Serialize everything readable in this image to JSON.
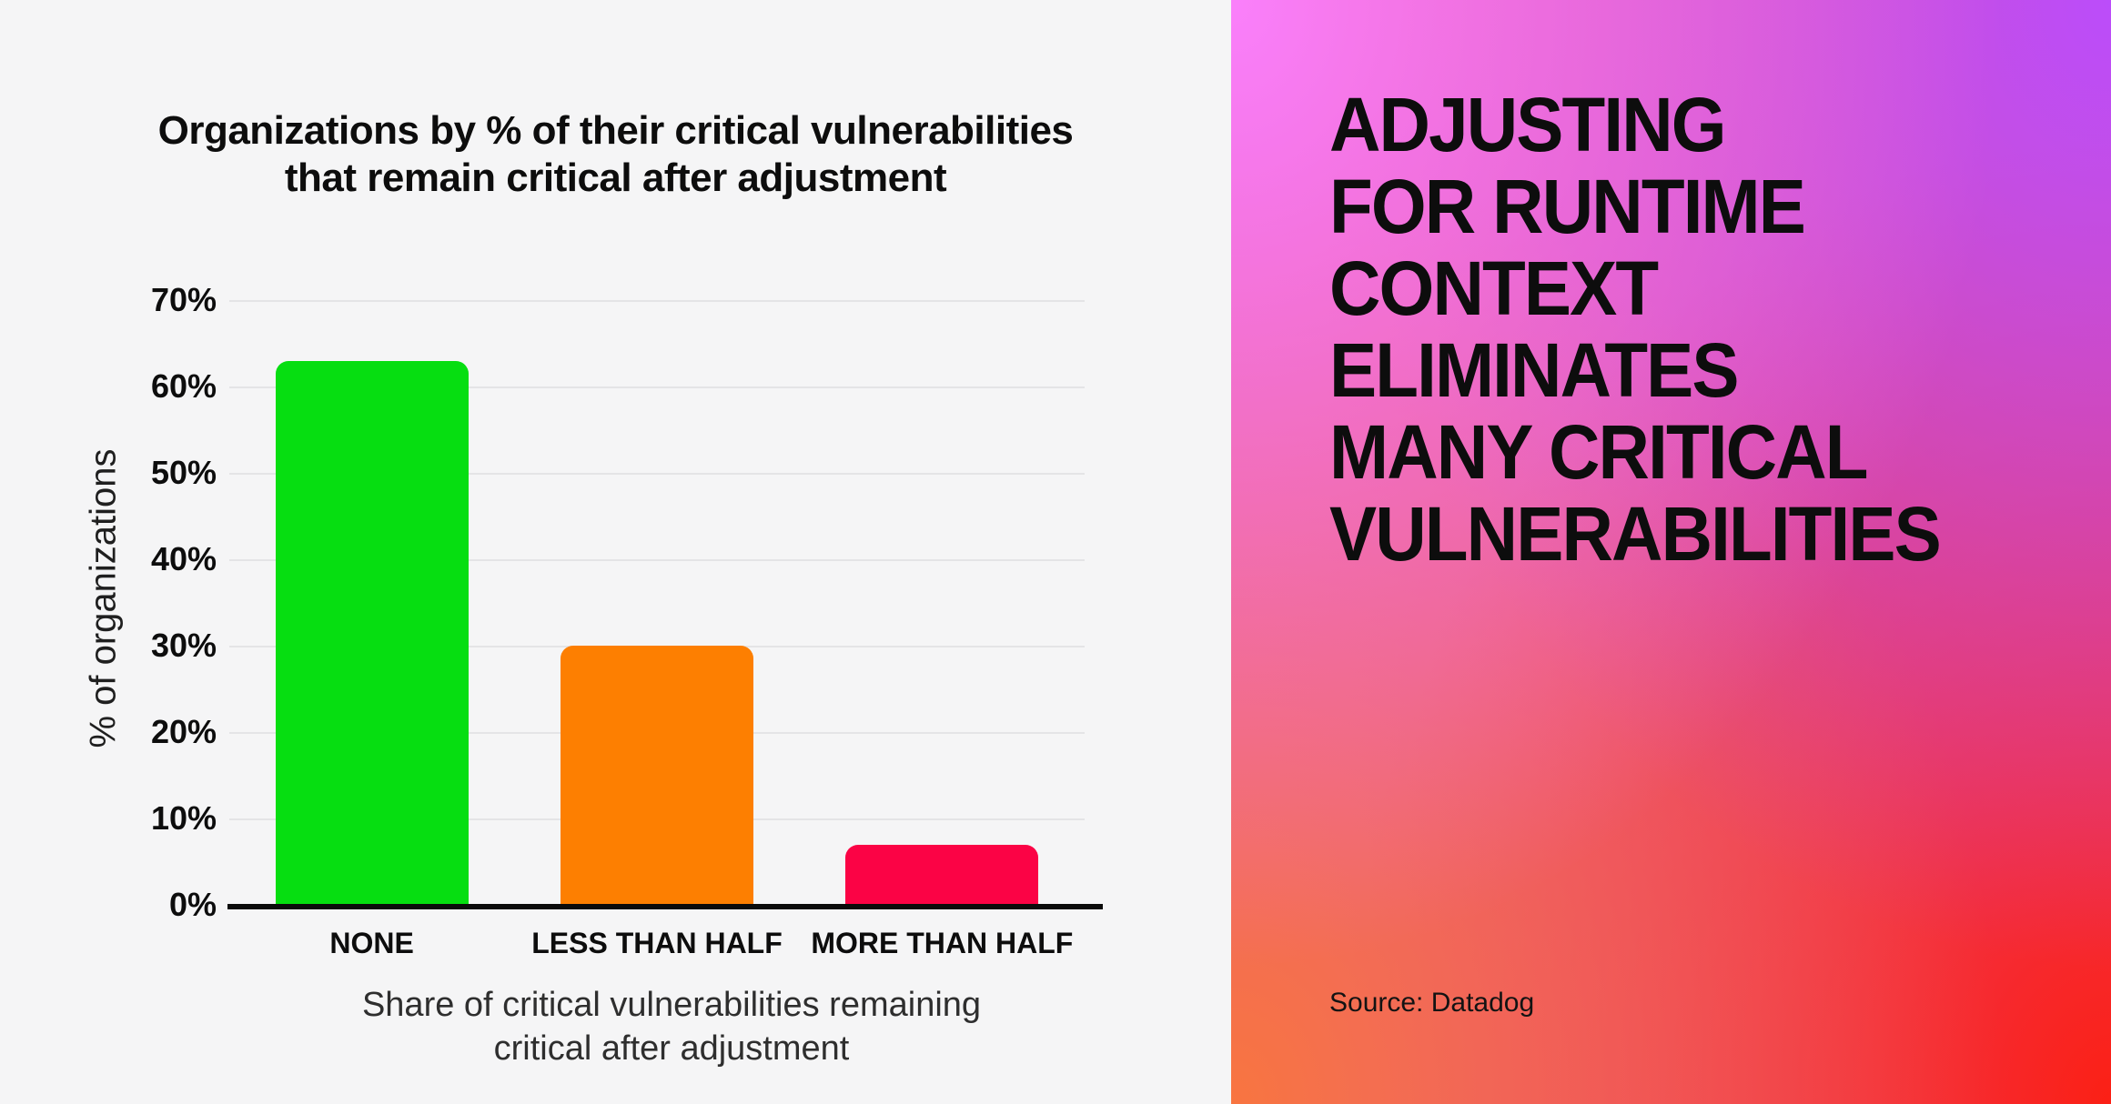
{
  "chart": {
    "title_line1": "Organizations by % of their critical vulnerabilities",
    "title_line2": "that remain critical after adjustment",
    "xlabel_line1": "Share of critical vulnerabilities remaining",
    "xlabel_line2": "critical after adjustment"
  },
  "chart_data": {
    "type": "bar",
    "title": "Organizations by % of their critical vulnerabilities that remain critical after adjustment",
    "categories": [
      "NONE",
      "LESS THAN HALF",
      "MORE THAN HALF"
    ],
    "values": [
      63,
      30,
      7
    ],
    "bar_colors": [
      "#06DE11",
      "#FD7F01",
      "#FB0345"
    ],
    "xlabel": "Share of critical vulnerabilities remaining critical after adjustment",
    "ylabel": "% of organizations",
    "ylim": [
      0,
      70
    ],
    "yticks": [
      0,
      10,
      20,
      30,
      40,
      50,
      60,
      70
    ],
    "ytick_labels": [
      "0%",
      "10%",
      "20%",
      "30%",
      "40%",
      "50%",
      "60%",
      "70%"
    ],
    "grid": true,
    "legend": "none"
  },
  "right_panel": {
    "headline_lines": [
      "ADJUSTING",
      "FOR RUNTIME",
      "CONTEXT",
      "ELIMINATES",
      "MANY CRITICAL",
      "VULNERABILITIES"
    ],
    "source": "Source: Datadog",
    "colors": {
      "top_left": "#FA80FB",
      "top_right": "#BB4DFA",
      "bottom_left": "#F87540",
      "bottom_right": "#FB2015",
      "base": "#E1509B",
      "headline_text": "#0D0D0D"
    }
  },
  "colors": {
    "left_bg": "#F5F5F6",
    "gridline": "#E4E4E6",
    "axis_line": "#0B0B0B"
  }
}
